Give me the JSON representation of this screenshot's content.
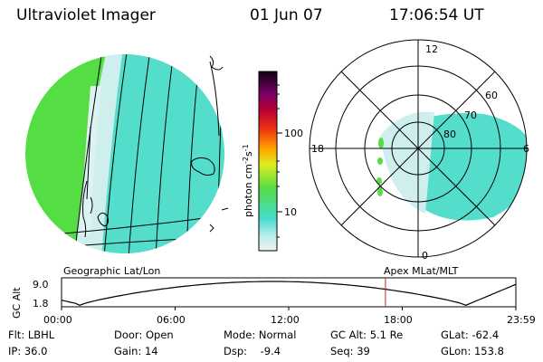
{
  "header": {
    "instrument": "Ultraviolet Imager",
    "date": "01 Jun 07",
    "time": "17:06:54 UT"
  },
  "colorbar": {
    "unit": "photon cm",
    "unit_exp1": "-2",
    "unit_mid": "s",
    "unit_exp2": "-1",
    "tick_100": "100",
    "tick_10": "10"
  },
  "polar": {
    "mlt_12": "12",
    "mlt_18": "18",
    "mlt_6": "6",
    "mlt_0": "0",
    "lat_60": "60",
    "lat_70": "70",
    "lat_80": "80"
  },
  "labels": {
    "geo": "Geographic Lat/Lon",
    "apex": "Apex MLat/MLT"
  },
  "altplot": {
    "ylabel": "GC Alt",
    "ytick_top": "9.0",
    "ytick_bottom": "1.8",
    "xticks": [
      "00:00",
      "06:00",
      "12:00",
      "18:00",
      "23:59"
    ],
    "current_time_fraction": 0.713
  },
  "info": {
    "filter": "Flt: LBHL",
    "ip": "IP: 36.0",
    "door": "Door: Open",
    "gain": "Gain: 14",
    "mode": "Mode: Normal",
    "dsp": "Dsp:    -9.4",
    "gcalt": "GC Alt: 5.1 Re",
    "seq": "Seq: 39",
    "glat": "GLat: -62.4",
    "glon": "GLon: 153.8"
  },
  "colors": {
    "green": "#55dd44",
    "cyan": "#44ddcc",
    "pale_cyan": "#bbeeee",
    "marker": "#cc2222"
  }
}
